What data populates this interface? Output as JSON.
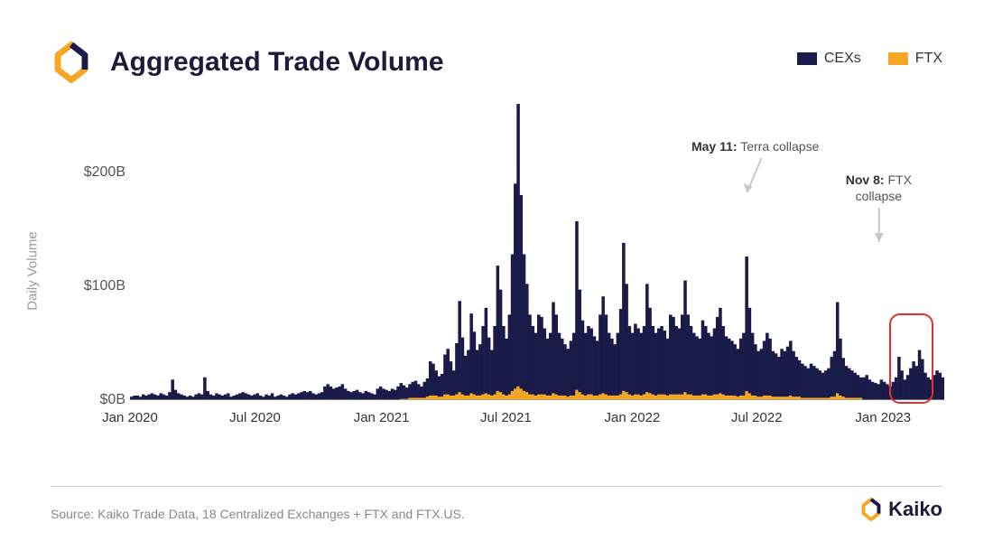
{
  "title": "Aggregated Trade Volume",
  "legend": [
    {
      "label": "CEXs",
      "color": "#1b1b4a"
    },
    {
      "label": "FTX",
      "color": "#f5a623"
    }
  ],
  "brand": {
    "name": "Kaiko",
    "orange": "#f5a623",
    "dark": "#1b1b4a"
  },
  "source": "Source: Kaiko Trade Data, 18 Centralized Exchanges + FTX and FTX.US.",
  "chart": {
    "type": "area-stacked-column",
    "background_color": "#ffffff",
    "axis_color": "#9a9a9a",
    "tick_font_size": 16,
    "title_font_size": 30,
    "ylabel": "Daily Volume",
    "ylabel_font_size": 15,
    "ylim": [
      0,
      260
    ],
    "yticks": [
      0,
      100,
      200
    ],
    "ytick_labels": [
      "$0B",
      "$100B",
      "$200B"
    ],
    "xlim": [
      "2020-01-01",
      "2023-03-31"
    ],
    "xticks": [
      "2020-01",
      "2020-07",
      "2021-01",
      "2021-07",
      "2022-01",
      "2022-07",
      "2023-01"
    ],
    "xtick_labels": [
      "Jan 2020",
      "Jul 2020",
      "Jan 2021",
      "Jul 2021",
      "Jan 2022",
      "Jul 2022",
      "Jan 2023"
    ],
    "series": {
      "cexs": {
        "color": "#1b1b4a",
        "fill_opacity": 1.0
      },
      "ftx": {
        "color": "#f5a623",
        "fill_opacity": 1.0
      }
    },
    "annotations": [
      {
        "date": "2022-05-11",
        "label_bold": "May 11:",
        "label_rest": "Terra collapse",
        "arrow_color": "#c8c8c8"
      },
      {
        "date": "2022-11-08",
        "label_bold": "Nov 8:",
        "label_rest": "FTX collapse",
        "arrow_color": "#c8c8c8"
      }
    ],
    "highlight": {
      "start": "2023-01-10",
      "end": "2023-03-15",
      "color": "#e52e2e",
      "radius": 12
    },
    "data_cexs": [
      3,
      4,
      4,
      3,
      5,
      4,
      5,
      6,
      5,
      4,
      6,
      5,
      4,
      7,
      18,
      9,
      6,
      5,
      4,
      3,
      4,
      3,
      5,
      6,
      5,
      20,
      8,
      5,
      4,
      6,
      5,
      4,
      5,
      6,
      3,
      4,
      5,
      6,
      7,
      6,
      5,
      4,
      5,
      6,
      4,
      3,
      5,
      4,
      6,
      3,
      4,
      5,
      4,
      3,
      5,
      6,
      5,
      6,
      7,
      8,
      7,
      8,
      6,
      5,
      6,
      7,
      12,
      14,
      12,
      10,
      11,
      12,
      14,
      10,
      8,
      7,
      8,
      9,
      7,
      6,
      8,
      7,
      6,
      5,
      10,
      12,
      10,
      9,
      8,
      10,
      9,
      12,
      14,
      12,
      10,
      12,
      14,
      15,
      12,
      10,
      14,
      16,
      30,
      28,
      22,
      18,
      20,
      35,
      40,
      30,
      22,
      45,
      80,
      50,
      35,
      40,
      70,
      55,
      40,
      45,
      60,
      75,
      50,
      40,
      60,
      110,
      90,
      60,
      50,
      70,
      120,
      180,
      255,
      170,
      120,
      95,
      70,
      60,
      55,
      70,
      68,
      58,
      50,
      55,
      80,
      70,
      55,
      50,
      45,
      42,
      48,
      55,
      148,
      90,
      65,
      55,
      60,
      58,
      52,
      48,
      70,
      85,
      70,
      55,
      50,
      45,
      55,
      75,
      130,
      95,
      60,
      55,
      62,
      58,
      55,
      60,
      95,
      75,
      60,
      55,
      58,
      60,
      56,
      50,
      70,
      68,
      60,
      58,
      70,
      98,
      70,
      60,
      55,
      52,
      50,
      65,
      60,
      55,
      52,
      58,
      68,
      75,
      60,
      52,
      50,
      48,
      45,
      42,
      50,
      55,
      118,
      75,
      55,
      45,
      40,
      42,
      48,
      55,
      50,
      40,
      38,
      35,
      42,
      40,
      44,
      48,
      40,
      35,
      32,
      30,
      28,
      26,
      30,
      28,
      26,
      24,
      22,
      24,
      26,
      35,
      40,
      80,
      50,
      34,
      28,
      26,
      24,
      22,
      20,
      18,
      20,
      22,
      18,
      16,
      15,
      14,
      18,
      16,
      14,
      12,
      16,
      20,
      38,
      26,
      18,
      22,
      28,
      34,
      30,
      44,
      36,
      24,
      20,
      18,
      22,
      26,
      24,
      20
    ],
    "data_ftx": [
      0,
      0,
      0,
      0,
      0,
      0,
      0,
      0,
      0,
      0,
      0,
      0,
      0,
      0,
      0,
      0,
      0,
      0,
      0,
      0,
      0,
      0,
      0,
      0,
      0,
      0,
      0,
      0,
      0,
      0,
      0,
      0,
      0,
      0,
      0,
      0,
      0,
      0,
      0,
      0,
      0,
      0,
      0,
      0,
      0,
      0,
      0,
      0,
      0,
      0,
      0,
      0,
      0,
      0,
      0,
      0,
      0,
      0,
      0,
      0,
      0,
      0,
      0,
      0,
      0,
      0,
      0,
      0,
      0,
      0,
      0,
      0,
      0,
      0,
      0,
      0,
      0,
      0,
      0,
      0,
      0,
      0,
      0,
      0,
      0,
      0,
      0,
      0,
      0,
      0,
      0,
      0,
      1,
      1,
      1,
      2,
      2,
      2,
      2,
      2,
      2,
      3,
      4,
      4,
      4,
      3,
      3,
      5,
      5,
      4,
      4,
      5,
      7,
      5,
      4,
      4,
      6,
      5,
      4,
      4,
      5,
      6,
      5,
      4,
      5,
      8,
      7,
      5,
      4,
      5,
      8,
      10,
      12,
      10,
      8,
      7,
      5,
      5,
      4,
      5,
      5,
      5,
      4,
      4,
      6,
      5,
      4,
      4,
      4,
      3,
      4,
      4,
      9,
      7,
      5,
      4,
      5,
      5,
      4,
      4,
      5,
      6,
      5,
      4,
      4,
      4,
      4,
      5,
      8,
      7,
      5,
      4,
      5,
      5,
      4,
      5,
      7,
      6,
      5,
      4,
      5,
      5,
      5,
      4,
      5,
      5,
      5,
      5,
      5,
      7,
      5,
      5,
      4,
      4,
      4,
      5,
      5,
      4,
      4,
      5,
      5,
      6,
      5,
      4,
      4,
      4,
      4,
      3,
      4,
      4,
      8,
      6,
      4,
      4,
      3,
      3,
      4,
      4,
      4,
      3,
      3,
      3,
      3,
      3,
      3,
      4,
      3,
      3,
      3,
      2,
      2,
      2,
      2,
      2,
      2,
      2,
      2,
      2,
      2,
      3,
      3,
      6,
      4,
      3,
      2,
      2,
      2,
      2,
      2,
      2,
      0,
      0,
      0,
      0,
      0,
      0,
      0,
      0,
      0,
      0,
      0,
      0,
      0,
      0,
      0,
      0,
      0,
      0,
      0,
      0,
      0,
      0,
      0,
      0,
      0,
      0,
      0,
      0
    ]
  }
}
